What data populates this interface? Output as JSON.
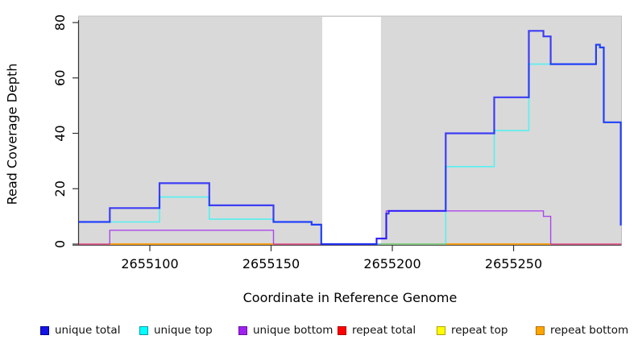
{
  "chart_data": {
    "type": "line",
    "subtype": "step-coverage",
    "title": "",
    "xlabel": "Coordinate in Reference Genome",
    "ylabel": "Read Coverage Depth",
    "xlim": [
      2655070.6,
      2655294.5
    ],
    "ylim": [
      0,
      80
    ],
    "x_ticks": [
      2655100,
      2655150,
      2655200,
      2655250
    ],
    "y_ticks": [
      0,
      20,
      40,
      60,
      80
    ],
    "grid": false,
    "legend_position": "bottom",
    "plot_background": "#ffffff",
    "covered_region_color": "#d9d9d9",
    "covered_region_border": "#bfbfbf",
    "covered_regions": [
      [
        2655070.6,
        2655171.1
      ],
      [
        2655195.3,
        2655294.5
      ]
    ],
    "uncovered_gap": [
      2655171.1,
      2655195.3
    ],
    "axis_color": "#333333",
    "series": [
      {
        "name": "repeat total",
        "color": "#ee1166",
        "opacity": 0.85,
        "width": 1.3,
        "segments": [
          [
            [
              2655070.6,
              0
            ],
            [
              2655294.5,
              0
            ]
          ]
        ]
      },
      {
        "name": "repeat top",
        "color": "#ffff00",
        "opacity": 0.9,
        "width": 1.3,
        "segments": [
          [
            [
              2655083.5,
              0
            ],
            [
              2655151,
              0
            ]
          ],
          [
            [
              2655195.3,
              0
            ],
            [
              2655265.3,
              0
            ]
          ]
        ]
      },
      {
        "name": "repeat bottom",
        "color": "#ff9800",
        "opacity": 0.9,
        "width": 1.8,
        "segments": [
          [
            [
              2655083.5,
              0
            ],
            [
              2655151,
              0
            ]
          ],
          [
            [
              2655195.3,
              0
            ],
            [
              2655265.3,
              0
            ]
          ]
        ]
      },
      {
        "name": "unique bottom",
        "color": "#a020f0",
        "opacity": 0.8,
        "width": 1.4,
        "segments": [
          [
            [
              2655083.5,
              0
            ],
            [
              2655083.5,
              5
            ],
            [
              2655151,
              5
            ],
            [
              2655151,
              0
            ]
          ],
          [
            [
              2655193.5,
              0
            ],
            [
              2655193.5,
              2
            ],
            [
              2655197.5,
              2
            ],
            [
              2655197.5,
              12
            ],
            [
              2655262.3,
              12
            ],
            [
              2655262.3,
              10
            ],
            [
              2655265.3,
              10
            ],
            [
              2655265.3,
              0
            ]
          ]
        ]
      },
      {
        "name": "unique top",
        "color": "#00ffff",
        "opacity": 0.6,
        "width": 1.6,
        "segments": [
          [
            [
              2655070.6,
              8
            ],
            [
              2655104,
              8
            ],
            [
              2655104,
              17
            ],
            [
              2655124.5,
              17
            ],
            [
              2655124.5,
              9
            ],
            [
              2655151,
              9
            ],
            [
              2655151,
              8
            ],
            [
              2655166.7,
              8
            ],
            [
              2655166.7,
              7
            ],
            [
              2655170.7,
              7
            ],
            [
              2655170.7,
              0
            ],
            [
              2655222,
              0
            ],
            [
              2655222,
              28
            ],
            [
              2655242,
              28
            ],
            [
              2655242,
              41
            ],
            [
              2655256.3,
              41
            ],
            [
              2655256.3,
              65
            ],
            [
              2655284,
              65
            ],
            [
              2655284,
              72
            ],
            [
              2655285.6,
              72
            ],
            [
              2655285.6,
              71
            ],
            [
              2655287.2,
              71
            ],
            [
              2655287.2,
              44
            ],
            [
              2655294.2,
              44
            ],
            [
              2655294.2,
              7
            ],
            [
              2655294.5,
              7
            ]
          ]
        ]
      },
      {
        "name": "unique total",
        "color": "#0000ff",
        "opacity": 0.72,
        "width": 2.2,
        "segments": [
          [
            [
              2655070.6,
              8
            ],
            [
              2655083.5,
              8
            ],
            [
              2655083.5,
              13
            ],
            [
              2655104,
              13
            ],
            [
              2655104,
              22
            ],
            [
              2655124.5,
              22
            ],
            [
              2655124.5,
              14
            ],
            [
              2655151,
              14
            ],
            [
              2655151,
              8
            ],
            [
              2655166.7,
              8
            ],
            [
              2655166.7,
              7
            ],
            [
              2655170.7,
              7
            ],
            [
              2655170.7,
              0
            ],
            [
              2655193.5,
              0
            ],
            [
              2655193.5,
              2
            ],
            [
              2655197.5,
              2
            ],
            [
              2655197.5,
              11
            ],
            [
              2655198.5,
              11
            ],
            [
              2655198.5,
              12
            ],
            [
              2655222,
              12
            ],
            [
              2655222,
              40
            ],
            [
              2655242,
              40
            ],
            [
              2655242,
              53
            ],
            [
              2655256.3,
              53
            ],
            [
              2655256.3,
              77
            ],
            [
              2655262.3,
              77
            ],
            [
              2655262.3,
              75
            ],
            [
              2655265.3,
              75
            ],
            [
              2655265.3,
              65
            ],
            [
              2655284,
              65
            ],
            [
              2655284,
              72
            ],
            [
              2655285.6,
              72
            ],
            [
              2655285.6,
              71
            ],
            [
              2655287.2,
              71
            ],
            [
              2655287.2,
              44
            ],
            [
              2655294.2,
              44
            ],
            [
              2655294.2,
              7
            ],
            [
              2655294.5,
              7
            ]
          ]
        ]
      }
    ]
  },
  "legend": {
    "items": [
      {
        "label": "unique total",
        "color": "#1414e6",
        "border": "#000099"
      },
      {
        "label": "unique top",
        "color": "#00ffff",
        "border": "#009aaa"
      },
      {
        "label": "unique bottom",
        "color": "#a020f0",
        "border": "#6a11a0"
      },
      {
        "label": "repeat total",
        "color": "#ff0000",
        "border": "#aa0000"
      },
      {
        "label": "repeat top",
        "color": "#ffff00",
        "border": "#b0a000"
      },
      {
        "label": "repeat bottom",
        "color": "#ffa500",
        "border": "#b06f00"
      }
    ]
  }
}
